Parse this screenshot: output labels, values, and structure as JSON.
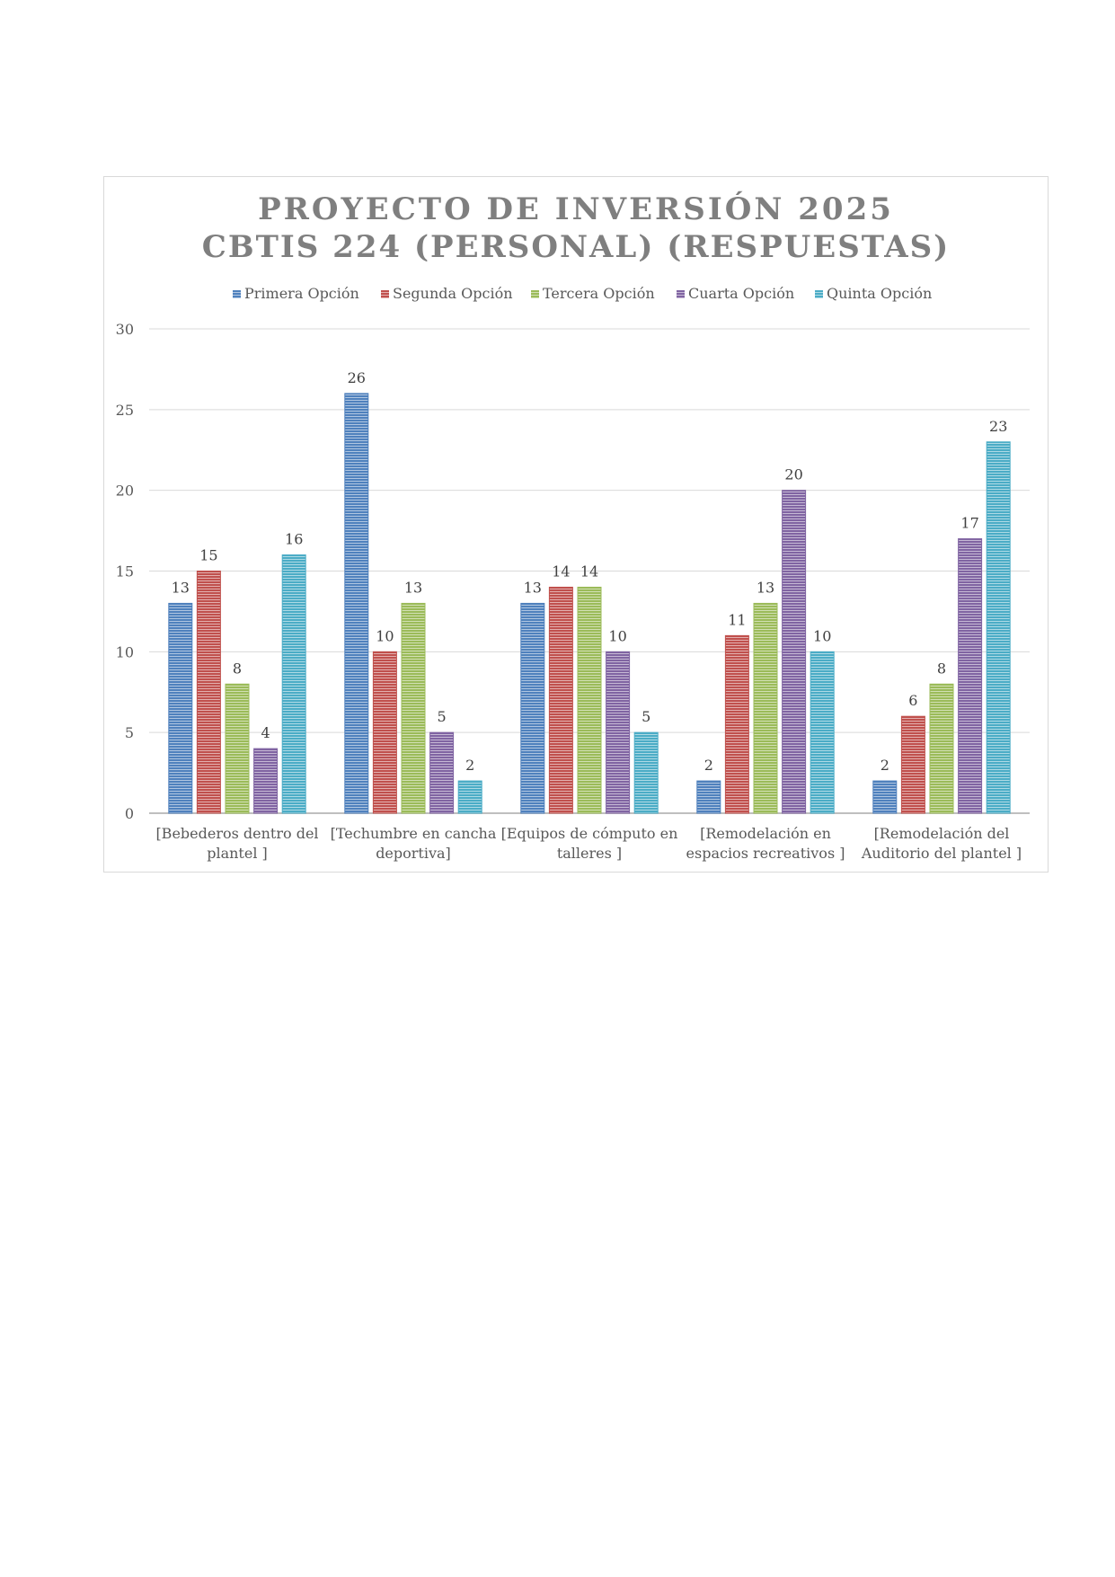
{
  "chart_data": {
    "type": "bar",
    "title": [
      "PROYECTO DE INVERSIÓN 2025",
      "CBTIS 224 (PERSONAL) (RESPUESTAS)"
    ],
    "xlabel": "",
    "ylabel": "",
    "ylim": [
      0,
      30
    ],
    "yticks": [
      0,
      5,
      10,
      15,
      20,
      25,
      30
    ],
    "grid": true,
    "legend_position": "top",
    "categories": [
      [
        "[Bebederos dentro del",
        "plantel ]"
      ],
      [
        "[Techumbre en cancha",
        "deportiva]"
      ],
      [
        "[Equipos de cómputo en",
        "talleres  ]"
      ],
      [
        "[Remodelación en",
        "espacios recreativos ]"
      ],
      [
        "[Remodelación del",
        "Auditorio del plantel ]"
      ]
    ],
    "series": [
      {
        "name": "Primera Opción",
        "color": "#4f81bd",
        "values": [
          13,
          26,
          13,
          2,
          2
        ]
      },
      {
        "name": "Segunda Opción",
        "color": "#c0504d",
        "values": [
          15,
          10,
          14,
          11,
          6
        ]
      },
      {
        "name": "Tercera Opción",
        "color": "#9bbb59",
        "values": [
          8,
          13,
          14,
          13,
          8
        ]
      },
      {
        "name": "Cuarta Opción",
        "color": "#8064a2",
        "values": [
          4,
          5,
          10,
          20,
          17
        ]
      },
      {
        "name": "Quinta Opción",
        "color": "#4bacc6",
        "values": [
          16,
          2,
          5,
          10,
          23
        ]
      }
    ]
  }
}
